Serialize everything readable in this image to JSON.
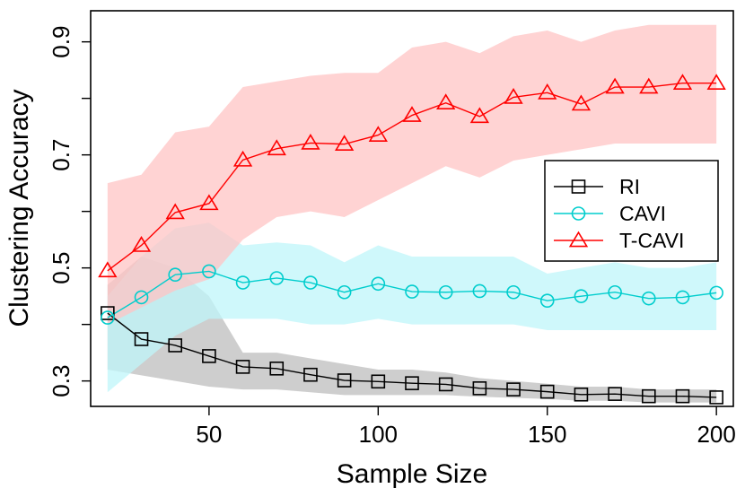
{
  "chart_data": {
    "type": "line",
    "title": "",
    "xlabel": "Sample Size",
    "ylabel": "Clustering Accuracy",
    "xlim": [
      15,
      205
    ],
    "ylim": [
      0.255,
      0.955
    ],
    "xticks": [
      50,
      100,
      150,
      200
    ],
    "yticks": [
      0.3,
      0.5,
      0.7,
      0.9
    ],
    "ytick_labels": [
      "0.3",
      "0.5",
      "0.7",
      "0.9"
    ],
    "grid": false,
    "legend_position": "right",
    "x": [
      20,
      30,
      40,
      50,
      60,
      70,
      80,
      90,
      100,
      110,
      120,
      130,
      140,
      150,
      160,
      170,
      180,
      190,
      200
    ],
    "series": [
      {
        "name": "RI",
        "color": "#000000",
        "band_color": "#bebebe",
        "marker": "square",
        "values": [
          0.42,
          0.374,
          0.363,
          0.344,
          0.325,
          0.322,
          0.311,
          0.301,
          0.299,
          0.296,
          0.294,
          0.287,
          0.285,
          0.281,
          0.276,
          0.277,
          0.273,
          0.273,
          0.271
        ],
        "lower": [
          0.32,
          0.31,
          0.3,
          0.29,
          0.285,
          0.285,
          0.28,
          0.275,
          0.275,
          0.275,
          0.275,
          0.272,
          0.27,
          0.268,
          0.265,
          0.265,
          0.262,
          0.262,
          0.262
        ],
        "upper": [
          0.47,
          0.52,
          0.5,
          0.45,
          0.35,
          0.35,
          0.34,
          0.33,
          0.32,
          0.32,
          0.315,
          0.305,
          0.3,
          0.295,
          0.29,
          0.29,
          0.285,
          0.285,
          0.285
        ]
      },
      {
        "name": "CAVI",
        "color": "#00cdcd",
        "band_color": "#bff6fa",
        "marker": "circle",
        "values": [
          0.412,
          0.448,
          0.488,
          0.494,
          0.474,
          0.482,
          0.474,
          0.457,
          0.472,
          0.458,
          0.457,
          0.459,
          0.457,
          0.442,
          0.45,
          0.457,
          0.446,
          0.448,
          0.456
        ],
        "lower": [
          0.28,
          0.33,
          0.38,
          0.41,
          0.41,
          0.41,
          0.4,
          0.4,
          0.41,
          0.4,
          0.4,
          0.4,
          0.4,
          0.39,
          0.39,
          0.39,
          0.39,
          0.39,
          0.39
        ],
        "upper": [
          0.45,
          0.52,
          0.57,
          0.58,
          0.54,
          0.545,
          0.54,
          0.51,
          0.54,
          0.52,
          0.52,
          0.52,
          0.52,
          0.49,
          0.5,
          0.51,
          0.5,
          0.5,
          0.51
        ]
      },
      {
        "name": "T-CAVI",
        "color": "#ff0000",
        "band_color": "#ffc4c4",
        "marker": "triangle",
        "values": [
          0.495,
          0.54,
          0.598,
          0.614,
          0.691,
          0.711,
          0.721,
          0.719,
          0.735,
          0.77,
          0.792,
          0.768,
          0.802,
          0.81,
          0.79,
          0.82,
          0.82,
          0.827,
          0.827
        ],
        "lower": [
          0.4,
          0.43,
          0.46,
          0.48,
          0.55,
          0.59,
          0.6,
          0.59,
          0.62,
          0.65,
          0.68,
          0.66,
          0.69,
          0.7,
          0.71,
          0.72,
          0.72,
          0.72,
          0.72
        ],
        "upper": [
          0.65,
          0.665,
          0.74,
          0.75,
          0.82,
          0.83,
          0.84,
          0.845,
          0.845,
          0.89,
          0.9,
          0.88,
          0.91,
          0.92,
          0.9,
          0.92,
          0.93,
          0.93,
          0.93
        ]
      }
    ]
  }
}
